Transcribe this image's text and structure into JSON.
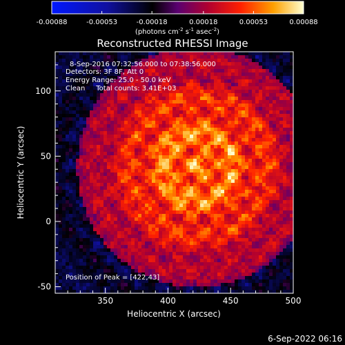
{
  "chart_data": {
    "type": "heatmap",
    "title": "Reconstructed RHESSI Image",
    "xlabel": "Heliocentric X (arcsec)",
    "ylabel": "Heliocentric Y (arcsec)",
    "xlim": [
      310,
      500
    ],
    "ylim": [
      -55,
      130
    ],
    "x_ticks": [
      "350",
      "400",
      "450",
      "500"
    ],
    "y_ticks": [
      "-50",
      "0",
      "50",
      "100"
    ],
    "colorbar": {
      "ticks": [
        "-0.00088",
        "-0.00053",
        "-0.00018",
        "0.00018",
        "0.00053",
        "0.00088"
      ],
      "range": [
        -0.00088,
        0.00088
      ],
      "unit_label_parts": [
        "(photons cm",
        "-2",
        " s",
        "-1",
        " asec",
        "-2",
        ")"
      ]
    },
    "annotations": {
      "time_range": "8-Sep-2016 07:32:56.000 to 07:38:56.000",
      "detectors": "Detectors: 3F 8F, Att 0",
      "energy": "Energy Range: 25.0 - 50.0 keV",
      "clean": "Clean     Total counts: 3.41E+03",
      "peak": "Position of Peak = [422,43]"
    },
    "peak": {
      "x": 422,
      "y": 43
    },
    "image_description_fields": {
      "peak_value": 0.00088,
      "min_value": -0.00088
    }
  },
  "footer": {
    "timestamp": "6-Sep-2022 06:16"
  },
  "colors": {
    "background": "#000000",
    "axis": "#ffffff",
    "colormap": [
      "#0000ff",
      "#0000aa",
      "#000000",
      "#6a0090",
      "#c0003a",
      "#ff3000",
      "#ffa000",
      "#ffff80",
      "#ffffff"
    ]
  }
}
